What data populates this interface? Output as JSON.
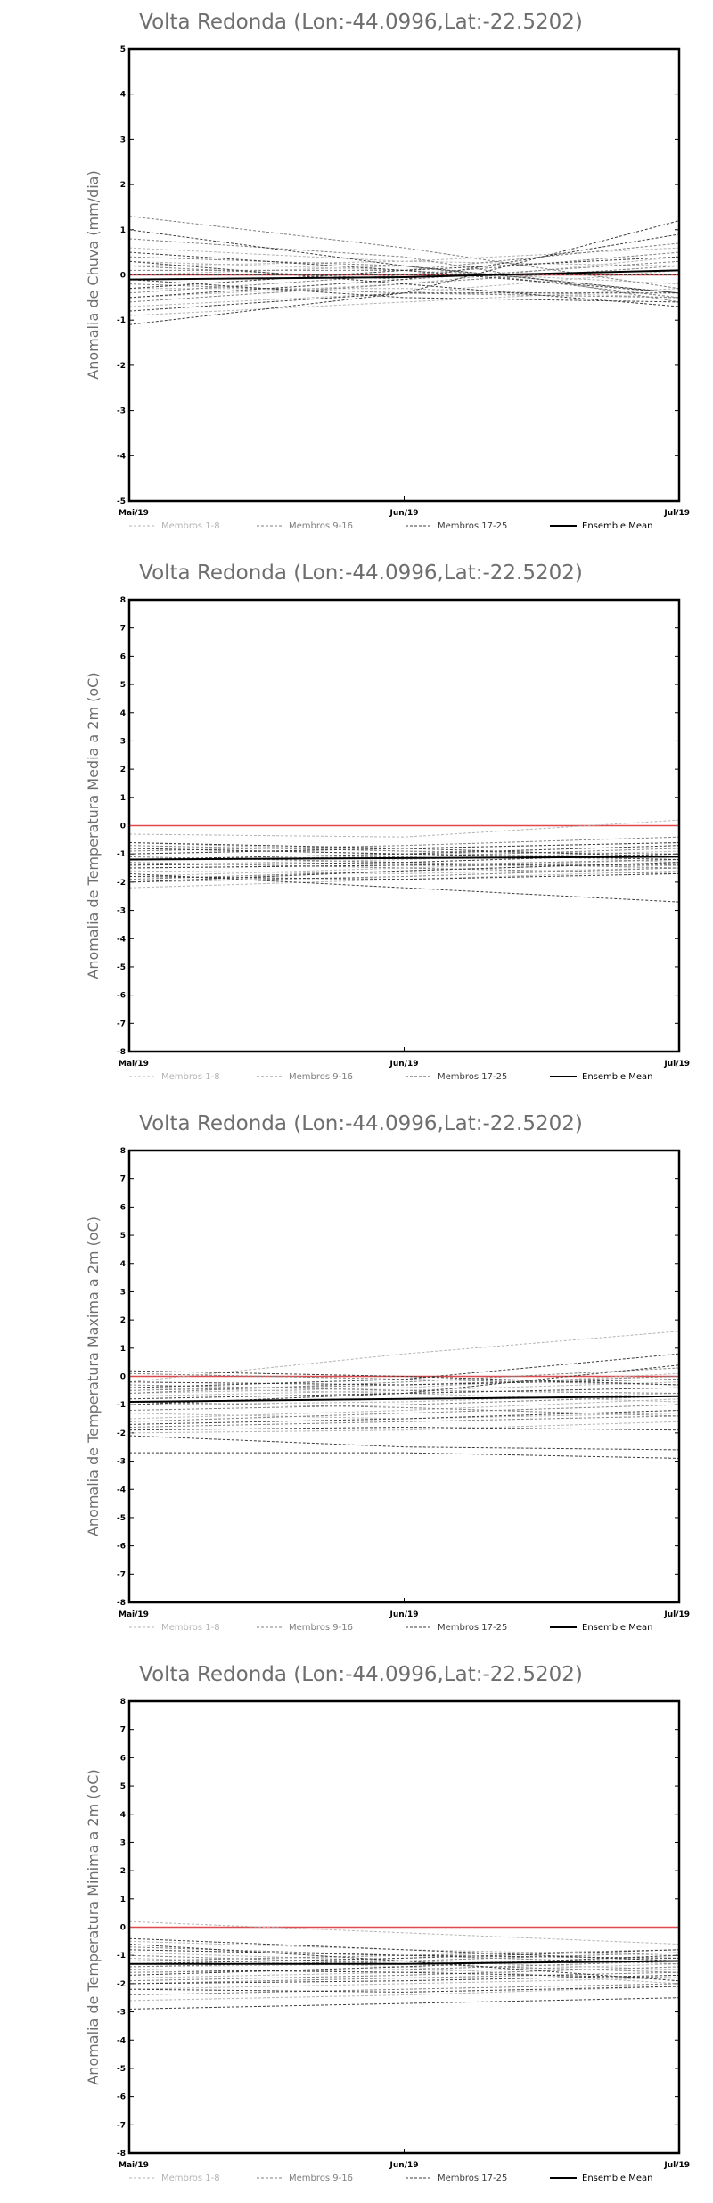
{
  "chart_data": [
    {
      "type": "line",
      "title": "Volta Redonda (Lon:-44.0996,Lat:-22.5202)",
      "ylabel": "Anomalia de Chuva (mm/dia)",
      "x": [
        "Mai/19",
        "Jun/19",
        "Jul/19"
      ],
      "ylim": [
        -5,
        5
      ],
      "yticks": [
        -5,
        -4,
        -3,
        -2,
        -1,
        0,
        1,
        2,
        3,
        4,
        5
      ],
      "zero_line_color": "#e0484b",
      "series": [
        {
          "group": "Membros 1-8",
          "values": [
            0.3,
            0.1,
            -0.2
          ]
        },
        {
          "group": "Membros 1-8",
          "values": [
            -0.5,
            -0.2,
            0.4
          ]
        },
        {
          "group": "Membros 1-8",
          "values": [
            0.2,
            0.3,
            0.6
          ]
        },
        {
          "group": "Membros 1-8",
          "values": [
            -0.7,
            -0.4,
            0.1
          ]
        },
        {
          "group": "Membros 1-8",
          "values": [
            0.0,
            0.2,
            -0.4
          ]
        },
        {
          "group": "Membros 1-8",
          "values": [
            -0.3,
            -0.3,
            -0.5
          ]
        },
        {
          "group": "Membros 1-8",
          "values": [
            0.6,
            0.3,
            0.2
          ]
        },
        {
          "group": "Membros 1-8",
          "values": [
            -0.9,
            -0.6,
            -0.3
          ]
        },
        {
          "group": "Membros 9-16",
          "values": [
            1.3,
            0.6,
            -0.3
          ]
        },
        {
          "group": "Membros 9-16",
          "values": [
            0.8,
            0.4,
            -0.6
          ]
        },
        {
          "group": "Membros 9-16",
          "values": [
            -0.4,
            0.0,
            0.5
          ]
        },
        {
          "group": "Membros 9-16",
          "values": [
            0.2,
            -0.1,
            0.3
          ]
        },
        {
          "group": "Membros 9-16",
          "values": [
            -0.6,
            -0.2,
            0.2
          ]
        },
        {
          "group": "Membros 9-16",
          "values": [
            0.4,
            0.2,
            -0.5
          ]
        },
        {
          "group": "Membros 9-16",
          "values": [
            -0.2,
            -0.4,
            -0.5
          ]
        },
        {
          "group": "Membros 9-16",
          "values": [
            0.1,
            0.1,
            0.7
          ]
        },
        {
          "group": "Membros 17-25",
          "values": [
            -1.1,
            -0.4,
            1.2
          ]
        },
        {
          "group": "Membros 17-25",
          "values": [
            1.0,
            0.2,
            -0.4
          ]
        },
        {
          "group": "Membros 17-25",
          "values": [
            -0.8,
            -0.4,
            -0.4
          ]
        },
        {
          "group": "Membros 17-25",
          "values": [
            0.5,
            0.1,
            -0.4
          ]
        },
        {
          "group": "Membros 17-25",
          "values": [
            -0.3,
            0.1,
            0.4
          ]
        },
        {
          "group": "Membros 17-25",
          "values": [
            -0.5,
            -0.1,
            0.9
          ]
        },
        {
          "group": "Membros 17-25",
          "values": [
            0.3,
            -0.2,
            -0.7
          ]
        },
        {
          "group": "Membros 17-25",
          "values": [
            -0.1,
            -0.5,
            -0.6
          ]
        },
        {
          "group": "Membros 17-25",
          "values": [
            0.0,
            0.0,
            0.0
          ]
        },
        {
          "group": "Ensemble Mean",
          "values": [
            -0.1,
            -0.05,
            0.1
          ]
        }
      ]
    },
    {
      "type": "line",
      "title": "Volta Redonda (Lon:-44.0996,Lat:-22.5202)",
      "ylabel": "Anomalia de Temperatura Media a 2m (oC)",
      "x": [
        "Mai/19",
        "Jun/19",
        "Jul/19"
      ],
      "ylim": [
        -8,
        8
      ],
      "yticks": [
        -8,
        -7,
        -6,
        -5,
        -4,
        -3,
        -2,
        -1,
        0,
        1,
        2,
        3,
        4,
        5,
        6,
        7,
        8
      ],
      "zero_line_color": "#e0484b",
      "series": [
        {
          "group": "Membros 1-8",
          "values": [
            -0.3,
            -0.4,
            0.2
          ]
        },
        {
          "group": "Membros 1-8",
          "values": [
            -1.0,
            -0.8,
            -0.6
          ]
        },
        {
          "group": "Membros 1-8",
          "values": [
            -1.8,
            -1.5,
            -1.2
          ]
        },
        {
          "group": "Membros 1-8",
          "values": [
            -0.6,
            -0.9,
            -1.3
          ]
        },
        {
          "group": "Membros 1-8",
          "values": [
            -2.2,
            -1.9,
            -1.6
          ]
        },
        {
          "group": "Membros 1-8",
          "values": [
            -1.4,
            -1.2,
            -0.9
          ]
        },
        {
          "group": "Membros 1-8",
          "values": [
            -0.8,
            -1.0,
            -1.1
          ]
        },
        {
          "group": "Membros 1-8",
          "values": [
            -1.6,
            -1.7,
            -1.5
          ]
        },
        {
          "group": "Membros 9-16",
          "values": [
            -1.1,
            -1.3,
            -1.5
          ]
        },
        {
          "group": "Membros 9-16",
          "values": [
            -2.0,
            -1.8,
            -1.5
          ]
        },
        {
          "group": "Membros 9-16",
          "values": [
            -0.9,
            -0.7,
            -0.4
          ]
        },
        {
          "group": "Membros 9-16",
          "values": [
            -1.5,
            -1.4,
            -1.2
          ]
        },
        {
          "group": "Membros 9-16",
          "values": [
            -1.3,
            -1.5,
            -1.7
          ]
        },
        {
          "group": "Membros 9-16",
          "values": [
            -0.7,
            -0.9,
            -1.0
          ]
        },
        {
          "group": "Membros 9-16",
          "values": [
            -1.9,
            -1.6,
            -1.3
          ]
        },
        {
          "group": "Membros 9-16",
          "values": [
            -1.2,
            -1.1,
            -0.8
          ]
        },
        {
          "group": "Membros 17-25",
          "values": [
            -1.7,
            -2.2,
            -2.7
          ]
        },
        {
          "group": "Membros 17-25",
          "values": [
            -0.8,
            -1.0,
            -1.2
          ]
        },
        {
          "group": "Membros 17-25",
          "values": [
            -1.0,
            -0.8,
            -0.6
          ]
        },
        {
          "group": "Membros 17-25",
          "values": [
            -2.0,
            -1.6,
            -1.3
          ]
        },
        {
          "group": "Membros 17-25",
          "values": [
            -1.4,
            -1.3,
            -1.0
          ]
        },
        {
          "group": "Membros 17-25",
          "values": [
            -1.2,
            -1.0,
            -0.7
          ]
        },
        {
          "group": "Membros 17-25",
          "values": [
            -1.8,
            -1.9,
            -1.7
          ]
        },
        {
          "group": "Membros 17-25",
          "values": [
            -0.6,
            -0.8,
            -1.1
          ]
        },
        {
          "group": "Membros 17-25",
          "values": [
            -1.5,
            -1.4,
            -1.4
          ]
        },
        {
          "group": "Ensemble Mean",
          "values": [
            -1.2,
            -1.15,
            -1.1
          ]
        }
      ]
    },
    {
      "type": "line",
      "title": "Volta Redonda (Lon:-44.0996,Lat:-22.5202)",
      "ylabel": "Anomalia de Temperatura Maxima a 2m (oC)",
      "x": [
        "Mai/19",
        "Jun/19",
        "Jul/19"
      ],
      "ylim": [
        -8,
        8
      ],
      "yticks": [
        -8,
        -7,
        -6,
        -5,
        -4,
        -3,
        -2,
        -1,
        0,
        1,
        2,
        3,
        4,
        5,
        6,
        7,
        8
      ],
      "zero_line_color": "#e0484b",
      "series": [
        {
          "group": "Membros 1-8",
          "values": [
            -0.2,
            0.8,
            1.6
          ]
        },
        {
          "group": "Membros 1-8",
          "values": [
            -0.6,
            -0.4,
            0.1
          ]
        },
        {
          "group": "Membros 1-8",
          "values": [
            -1.5,
            -1.2,
            -0.8
          ]
        },
        {
          "group": "Membros 1-8",
          "values": [
            -0.4,
            -0.6,
            -0.9
          ]
        },
        {
          "group": "Membros 1-8",
          "values": [
            -2.0,
            -1.9,
            -1.6
          ]
        },
        {
          "group": "Membros 1-8",
          "values": [
            -1.0,
            -0.9,
            -0.6
          ]
        },
        {
          "group": "Membros 1-8",
          "values": [
            -0.7,
            -0.5,
            -0.2
          ]
        },
        {
          "group": "Membros 1-8",
          "values": [
            -1.3,
            -1.5,
            -1.3
          ]
        },
        {
          "group": "Membros 9-16",
          "values": [
            -0.6,
            -0.2,
            0.3
          ]
        },
        {
          "group": "Membros 9-16",
          "values": [
            -1.8,
            -1.6,
            -1.4
          ]
        },
        {
          "group": "Membros 9-16",
          "values": [
            0.1,
            -0.1,
            -0.3
          ]
        },
        {
          "group": "Membros 9-16",
          "values": [
            -1.2,
            -1.0,
            -0.7
          ]
        },
        {
          "group": "Membros 9-16",
          "values": [
            -0.9,
            -1.1,
            -1.4
          ]
        },
        {
          "group": "Membros 9-16",
          "values": [
            -0.3,
            -0.5,
            -0.6
          ]
        },
        {
          "group": "Membros 9-16",
          "values": [
            -1.6,
            -1.3,
            -1.0
          ]
        },
        {
          "group": "Membros 9-16",
          "values": [
            -0.5,
            -0.3,
            0.0
          ]
        },
        {
          "group": "Membros 17-25",
          "values": [
            -2.7,
            -2.7,
            -2.9
          ]
        },
        {
          "group": "Membros 17-25",
          "values": [
            -0.4,
            -0.1,
            0.8
          ]
        },
        {
          "group": "Membros 17-25",
          "values": [
            -2.1,
            -2.5,
            -2.6
          ]
        },
        {
          "group": "Membros 17-25",
          "values": [
            -1.7,
            -1.5,
            -1.2
          ]
        },
        {
          "group": "Membros 17-25",
          "values": [
            -0.2,
            -0.3,
            -0.1
          ]
        },
        {
          "group": "Membros 17-25",
          "values": [
            -1.0,
            -0.6,
            0.4
          ]
        },
        {
          "group": "Membros 17-25",
          "values": [
            0.2,
            0.0,
            -0.3
          ]
        },
        {
          "group": "Membros 17-25",
          "values": [
            -1.9,
            -1.8,
            -1.9
          ]
        },
        {
          "group": "Membros 17-25",
          "values": [
            -0.8,
            -0.6,
            -0.4
          ]
        },
        {
          "group": "Ensemble Mean",
          "values": [
            -0.9,
            -0.8,
            -0.7
          ]
        }
      ]
    },
    {
      "type": "line",
      "title": "Volta Redonda (Lon:-44.0996,Lat:-22.5202)",
      "ylabel": "Anomalia de Temperatura Minima a 2m (oC)",
      "x": [
        "Mai/19",
        "Jun/19",
        "Jul/19"
      ],
      "ylim": [
        -8,
        8
      ],
      "yticks": [
        -8,
        -7,
        -6,
        -5,
        -4,
        -3,
        -2,
        -1,
        0,
        1,
        2,
        3,
        4,
        5,
        6,
        7,
        8
      ],
      "zero_line_color": "#e0484b",
      "series": [
        {
          "group": "Membros 1-8",
          "values": [
            0.2,
            -0.2,
            -0.6
          ]
        },
        {
          "group": "Membros 1-8",
          "values": [
            -0.5,
            -0.8,
            -1.0
          ]
        },
        {
          "group": "Membros 1-8",
          "values": [
            -1.4,
            -1.3,
            -1.1
          ]
        },
        {
          "group": "Membros 1-8",
          "values": [
            -2.2,
            -2.0,
            -1.8
          ]
        },
        {
          "group": "Membros 1-8",
          "values": [
            -0.9,
            -1.2,
            -1.5
          ]
        },
        {
          "group": "Membros 1-8",
          "values": [
            -2.6,
            -2.4,
            -2.1
          ]
        },
        {
          "group": "Membros 1-8",
          "values": [
            -1.8,
            -1.6,
            -1.3
          ]
        },
        {
          "group": "Membros 1-8",
          "values": [
            -1.1,
            -1.4,
            -2.0
          ]
        },
        {
          "group": "Membros 9-16",
          "values": [
            -1.2,
            -1.0,
            -0.8
          ]
        },
        {
          "group": "Membros 9-16",
          "values": [
            -2.0,
            -1.8,
            -1.6
          ]
        },
        {
          "group": "Membros 9-16",
          "values": [
            -0.7,
            -1.0,
            -1.3
          ]
        },
        {
          "group": "Membros 9-16",
          "values": [
            -1.6,
            -1.5,
            -1.2
          ]
        },
        {
          "group": "Membros 9-16",
          "values": [
            -2.4,
            -2.2,
            -2.0
          ]
        },
        {
          "group": "Membros 9-16",
          "values": [
            -1.0,
            -1.3,
            -1.6
          ]
        },
        {
          "group": "Membros 9-16",
          "values": [
            -1.9,
            -1.7,
            -1.4
          ]
        },
        {
          "group": "Membros 9-16",
          "values": [
            -1.4,
            -1.2,
            -0.9
          ]
        },
        {
          "group": "Membros 17-25",
          "values": [
            -2.9,
            -2.7,
            -2.5
          ]
        },
        {
          "group": "Membros 17-25",
          "values": [
            -0.4,
            -0.8,
            -1.2
          ]
        },
        {
          "group": "Membros 17-25",
          "values": [
            -1.7,
            -1.4,
            -1.0
          ]
        },
        {
          "group": "Membros 17-25",
          "values": [
            -2.2,
            -2.3,
            -2.1
          ]
        },
        {
          "group": "Membros 17-25",
          "values": [
            -1.3,
            -1.1,
            -0.8
          ]
        },
        {
          "group": "Membros 17-25",
          "values": [
            -0.6,
            -1.2,
            -1.9
          ]
        },
        {
          "group": "Membros 17-25",
          "values": [
            -1.5,
            -1.6,
            -1.8
          ]
        },
        {
          "group": "Membros 17-25",
          "values": [
            -0.8,
            -1.0,
            -1.1
          ]
        },
        {
          "group": "Membros 17-25",
          "values": [
            -2.0,
            -1.9,
            -1.7
          ]
        },
        {
          "group": "Ensemble Mean",
          "values": [
            -1.3,
            -1.3,
            -1.2
          ]
        }
      ]
    }
  ],
  "legend": [
    {
      "label": "Membros 1-8",
      "color": "#b4b4b4",
      "dash": true
    },
    {
      "label": "Membros 9-16",
      "color": "#7f7f7f",
      "dash": true
    },
    {
      "label": "Membros 17-25",
      "color": "#3c3c3c",
      "dash": true
    },
    {
      "label": "Ensemble Mean",
      "color": "#000000",
      "dash": false
    }
  ]
}
